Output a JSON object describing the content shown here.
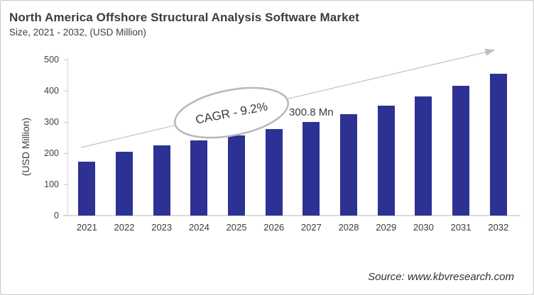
{
  "header": {
    "title": "North America Offshore Structural Analysis Software Market",
    "subtitle": "Size, 2021 - 2032, (USD Million)"
  },
  "chart_data": {
    "type": "bar",
    "title": "North America Offshore Structural Analysis Software Market Size, 2021 - 2032, (USD Million)",
    "categories": [
      "2021",
      "2022",
      "2023",
      "2024",
      "2025",
      "2026",
      "2027",
      "2028",
      "2029",
      "2030",
      "2031",
      "2032"
    ],
    "values": [
      172,
      205,
      224,
      241,
      258,
      277,
      300.8,
      324,
      353,
      381,
      417,
      455
    ],
    "unit": "USD Million",
    "xlabel": "",
    "ylabel": "(USD Million)",
    "ylim": [
      0,
      500
    ],
    "yticks": [
      0,
      100,
      200,
      300,
      400,
      500
    ],
    "grid": false,
    "legend": "none",
    "bar_color": "#2D3194",
    "annotations": {
      "cagr_label": "CAGR - 9.2%",
      "value_label": "300.8 Mn",
      "value_label_category": "2027",
      "trend_arrow": true
    }
  },
  "footer": {
    "source": "Source: www.kbvresearch.com"
  },
  "colors": {
    "bar": "#2D3194",
    "axis": "#D6D6D6",
    "trend_line": "#C6C6C6",
    "ellipse_stroke": "#B8B8B8",
    "text": "#3C3C3C",
    "background": "#FFFFFF",
    "border": "#C9C9C9"
  }
}
